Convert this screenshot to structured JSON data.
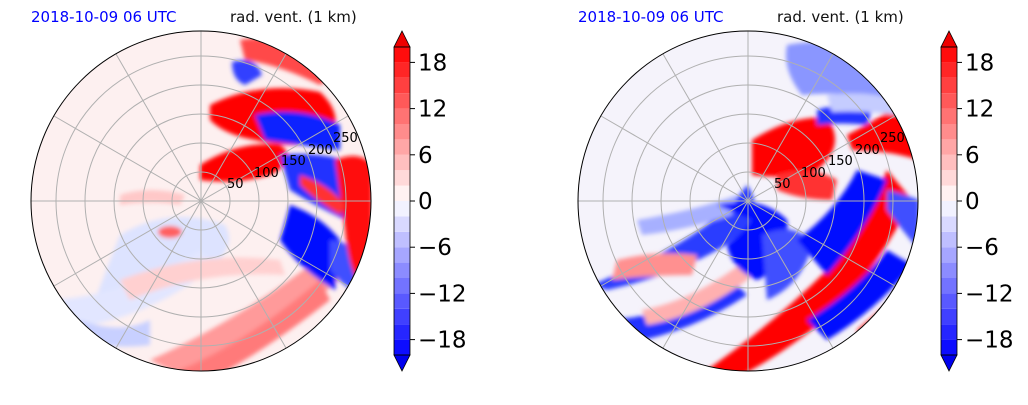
{
  "colors": {
    "title_time": "#0000ff",
    "title_field": "#111111",
    "positive": "#ff0000",
    "negative": "#0000ff",
    "grid": "#b0b0b0"
  },
  "chart_data": [
    {
      "type": "heatmap",
      "projection": "polar",
      "title_left": "2018-10-09 06 UTC",
      "title_right": "rad. vent. (1 km)",
      "radial_labels": [
        "50",
        "100",
        "150",
        "200",
        "250"
      ],
      "colorbar": {
        "ticks": [
          18,
          12,
          6,
          0,
          -6,
          -12,
          -18
        ],
        "tick_labels": [
          "18",
          "12",
          "6",
          "0",
          "−6",
          "−12",
          "−18"
        ],
        "range": [
          -20,
          20
        ],
        "extend": "both",
        "cmap": "bwr"
      }
    },
    {
      "type": "heatmap",
      "projection": "polar",
      "title_left": "2018-10-09 06 UTC",
      "title_right": "rad. vent. (1 km)",
      "radial_labels": [
        "50",
        "100",
        "150",
        "200",
        "250"
      ],
      "colorbar": {
        "ticks": [
          18,
          12,
          6,
          0,
          -6,
          -12,
          -18
        ],
        "tick_labels": [
          "18",
          "12",
          "6",
          "0",
          "−6",
          "−12",
          "−18"
        ],
        "range": [
          -20,
          20
        ],
        "extend": "both",
        "cmap": "bwr"
      }
    }
  ]
}
